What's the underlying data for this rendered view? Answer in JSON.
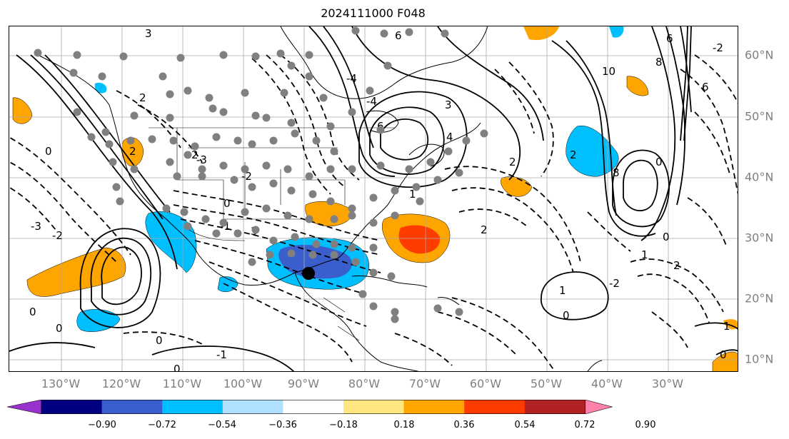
{
  "title": "2024111000 F048",
  "longitude_labels": [
    "130°W",
    "120°W",
    "110°W",
    "100°W",
    "90°W",
    "80°W",
    "70°W",
    "60°W",
    "50°W",
    "40°W",
    "30°W"
  ],
  "latitude_labels": [
    "60°N",
    "50°N",
    "40°N",
    "30°N",
    "20°N",
    "10°N"
  ],
  "colorbar": {
    "tick_labels": [
      "−0.90",
      "−0.72",
      "−0.54",
      "−0.36",
      "−0.18",
      "0.18",
      "0.36",
      "0.54",
      "0.72",
      "0.90"
    ],
    "colors": [
      "#9932cc",
      "#000080",
      "#3a5fcd",
      "#00bfff",
      "#b0e0ff",
      "#ffffff",
      "#ffe680",
      "#ffa500",
      "#ff3c00",
      "#b22222",
      "#ff82ab"
    ]
  },
  "contour_labels": [
    "3",
    "2",
    "2",
    "0",
    "-3",
    "-2",
    "0",
    "0",
    "3",
    "0",
    "-1",
    "-3",
    "2",
    "-2",
    "-4",
    "6",
    "6",
    "1",
    "3",
    "4",
    "6",
    "10",
    "8",
    "8",
    "6",
    "2",
    "0",
    "-2",
    "2",
    "1",
    "0",
    "1",
    "2",
    "-1",
    "0",
    "-4",
    "2",
    "0",
    "1",
    "0",
    "0",
    "-2"
  ],
  "colors": {
    "marker_gray": "#808080",
    "storm_center": "#000000",
    "axis_label": "#808080"
  }
}
